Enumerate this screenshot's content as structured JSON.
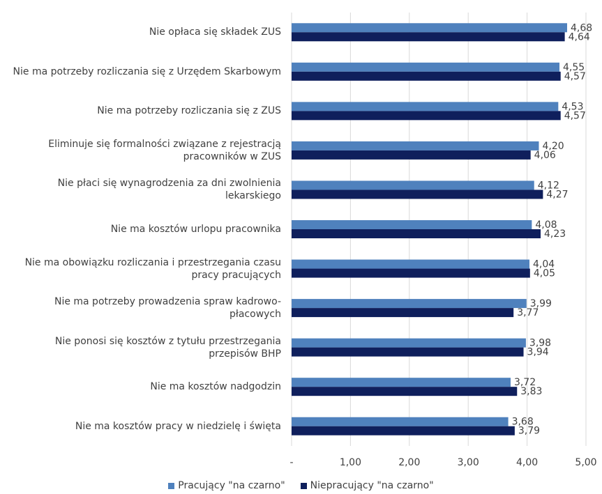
{
  "chart_data": {
    "type": "bar",
    "orientation": "horizontal",
    "categories": [
      "Nie opłaca się składek ZUS",
      "Nie ma potrzeby rozliczania się z Urzędem Skarbowym",
      "Nie ma potrzeby rozliczania się z ZUS",
      "Eliminuje się formalności związane z rejestracją pracowników w ZUS",
      "Nie płaci się wynagrodzenia za dni zwolnienia lekarskiego",
      "Nie ma kosztów urlopu pracownika",
      "Nie ma obowiązku rozliczania i przestrzegania czasu pracy pracujących",
      "Nie ma potrzeby prowadzenia spraw kadrowo-płacowych",
      "Nie ponosi się kosztów z tytułu przestrzegania przepisów BHP",
      "Nie ma kosztów nadgodzin",
      "Nie ma kosztów pracy w niedzielę i święta"
    ],
    "category_lines": [
      [
        "Nie opłaca się składek ZUS"
      ],
      [
        "Nie ma potrzeby rozliczania się z Urzędem Skarbowym"
      ],
      [
        "Nie ma potrzeby rozliczania się z ZUS"
      ],
      [
        "Eliminuje się formalności związane z rejestracją",
        "pracowników w ZUS"
      ],
      [
        "Nie płaci się wynagrodzenia za dni zwolnienia",
        "lekarskiego"
      ],
      [
        "Nie ma kosztów urlopu pracownika"
      ],
      [
        "Nie ma obowiązku rozliczania i przestrzegania czasu",
        "pracy pracujących"
      ],
      [
        "Nie ma potrzeby prowadzenia spraw kadrowo-",
        "płacowych"
      ],
      [
        "Nie ponosi się kosztów z tytułu przestrzegania",
        "przepisów BHP"
      ],
      [
        "Nie ma kosztów nadgodzin"
      ],
      [
        "Nie ma kosztów pracy w niedzielę i święta"
      ]
    ],
    "series": [
      {
        "name": "Pracujący \"na czarno\"",
        "color": "#4f81bd",
        "values": [
          4.68,
          4.55,
          4.53,
          4.2,
          4.12,
          4.08,
          4.04,
          3.99,
          3.98,
          3.72,
          3.68
        ],
        "labels": [
          "4,68",
          "4,55",
          "4,53",
          "4,20",
          "4,12",
          "4,08",
          "4,04",
          "3,99",
          "3,98",
          "3,72",
          "3,68"
        ]
      },
      {
        "name": "Niepracujący \"na czarno\"",
        "color": "#0f1f5c",
        "values": [
          4.64,
          4.57,
          4.57,
          4.06,
          4.27,
          4.23,
          4.05,
          3.77,
          3.94,
          3.83,
          3.79
        ],
        "labels": [
          "4,64",
          "4,57",
          "4,57",
          "4,06",
          "4,27",
          "4,23",
          "4,05",
          "3,77",
          "3,94",
          "3,83",
          "3,79"
        ]
      }
    ],
    "x_ticks": [
      0,
      1,
      2,
      3,
      4,
      5
    ],
    "x_tick_labels": [
      "-",
      "1,00",
      "2,00",
      "3,00",
      "4,00",
      "5,00"
    ],
    "xlim": [
      0,
      5
    ],
    "grid": true,
    "legend_position": "bottom"
  }
}
